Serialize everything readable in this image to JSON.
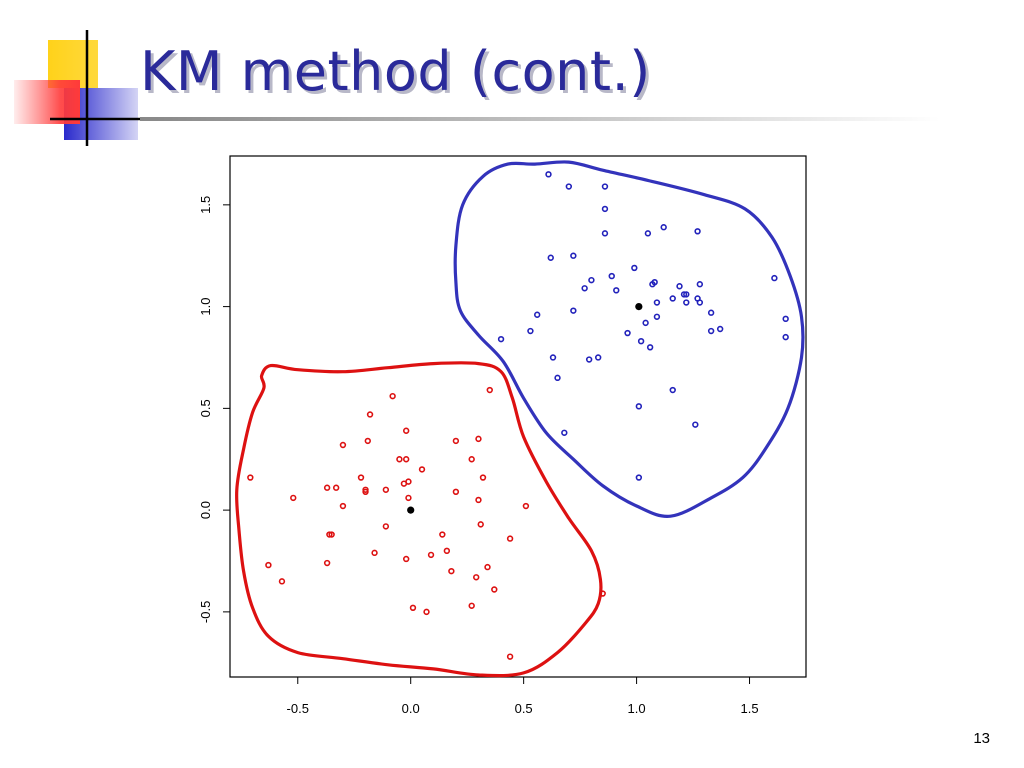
{
  "slide": {
    "title": "KM method (cont.)",
    "page_number": "13"
  },
  "colors": {
    "title": "#2a2a9a",
    "cluster_red": "#dd1111",
    "cluster_blue": "#2222bb",
    "red_outline": "#dd1111",
    "blue_outline": "#3333bb",
    "center": "#000000",
    "deco_yellow": "#ffd21a",
    "deco_red": "#ff4a4a",
    "deco_blue": "#2a2acc"
  },
  "chart_data": {
    "type": "scatter",
    "title": "",
    "xlabel": "",
    "ylabel": "",
    "xlim": [
      -0.8,
      1.75
    ],
    "ylim": [
      -0.82,
      1.74
    ],
    "grid": false,
    "x_ticks": [
      {
        "value": -0.5,
        "label": "-0.5"
      },
      {
        "value": 0.0,
        "label": "0.0"
      },
      {
        "value": 0.5,
        "label": "0.5"
      },
      {
        "value": 1.0,
        "label": "1.0"
      },
      {
        "value": 1.5,
        "label": "1.5"
      }
    ],
    "y_ticks": [
      {
        "value": -0.5,
        "label": "-0.5"
      },
      {
        "value": 0.0,
        "label": "0.0"
      },
      {
        "value": 0.5,
        "label": "0.5"
      },
      {
        "value": 1.0,
        "label": "1.0"
      },
      {
        "value": 1.5,
        "label": "1.5"
      }
    ],
    "series": [
      {
        "color": "#dd1111",
        "marker": "open-circle",
        "points": [
          [
            -0.71,
            0.16
          ],
          [
            -0.52,
            0.06
          ],
          [
            -0.63,
            -0.27
          ],
          [
            -0.57,
            -0.35
          ],
          [
            -0.37,
            0.11
          ],
          [
            -0.33,
            0.11
          ],
          [
            -0.36,
            -0.12
          ],
          [
            -0.35,
            -0.12
          ],
          [
            -0.37,
            -0.26
          ],
          [
            -0.3,
            0.02
          ],
          [
            -0.3,
            0.32
          ],
          [
            -0.22,
            0.16
          ],
          [
            -0.2,
            0.09
          ],
          [
            -0.2,
            0.1
          ],
          [
            -0.19,
            0.34
          ],
          [
            -0.18,
            0.47
          ],
          [
            -0.16,
            -0.21
          ],
          [
            -0.11,
            0.1
          ],
          [
            -0.11,
            -0.08
          ],
          [
            -0.08,
            0.56
          ],
          [
            -0.05,
            0.25
          ],
          [
            -0.03,
            0.13
          ],
          [
            -0.02,
            0.39
          ],
          [
            -0.02,
            0.25
          ],
          [
            -0.02,
            -0.24
          ],
          [
            -0.01,
            0.14
          ],
          [
            -0.01,
            0.06
          ],
          [
            0.01,
            -0.48
          ],
          [
            0.05,
            0.2
          ],
          [
            0.07,
            -0.5
          ],
          [
            0.09,
            -0.22
          ],
          [
            0.14,
            -0.12
          ],
          [
            0.16,
            -0.2
          ],
          [
            0.18,
            -0.3
          ],
          [
            0.2,
            0.34
          ],
          [
            0.2,
            0.09
          ],
          [
            0.27,
            0.25
          ],
          [
            0.27,
            -0.47
          ],
          [
            0.29,
            -0.33
          ],
          [
            0.3,
            0.35
          ],
          [
            0.3,
            0.05
          ],
          [
            0.31,
            -0.07
          ],
          [
            0.32,
            0.16
          ],
          [
            0.34,
            -0.28
          ],
          [
            0.35,
            0.59
          ],
          [
            0.37,
            -0.39
          ],
          [
            0.44,
            -0.14
          ],
          [
            0.44,
            -0.72
          ],
          [
            0.51,
            0.02
          ],
          [
            0.85,
            -0.41
          ]
        ]
      },
      {
        "color": "#2222bb",
        "marker": "open-circle",
        "points": [
          [
            0.61,
            1.65
          ],
          [
            0.7,
            1.59
          ],
          [
            0.86,
            1.59
          ],
          [
            0.86,
            1.48
          ],
          [
            0.86,
            1.36
          ],
          [
            0.62,
            1.24
          ],
          [
            0.72,
            1.25
          ],
          [
            0.89,
            1.15
          ],
          [
            0.91,
            1.08
          ],
          [
            0.4,
            0.84
          ],
          [
            0.53,
            0.88
          ],
          [
            0.56,
            0.96
          ],
          [
            0.63,
            0.75
          ],
          [
            0.65,
            0.65
          ],
          [
            0.68,
            0.38
          ],
          [
            0.72,
            0.98
          ],
          [
            0.77,
            1.09
          ],
          [
            0.8,
            1.13
          ],
          [
            0.79,
            0.74
          ],
          [
            0.83,
            0.75
          ],
          [
            0.96,
            0.87
          ],
          [
            0.99,
            1.19
          ],
          [
            1.01,
            0.51
          ],
          [
            1.01,
            0.16
          ],
          [
            1.02,
            0.83
          ],
          [
            1.04,
            0.92
          ],
          [
            1.05,
            1.36
          ],
          [
            1.06,
            0.8
          ],
          [
            1.07,
            1.11
          ],
          [
            1.08,
            1.12
          ],
          [
            1.09,
            1.02
          ],
          [
            1.09,
            0.95
          ],
          [
            1.12,
            1.39
          ],
          [
            1.16,
            1.04
          ],
          [
            1.16,
            0.59
          ],
          [
            1.19,
            1.1
          ],
          [
            1.21,
            1.06
          ],
          [
            1.22,
            1.06
          ],
          [
            1.22,
            1.02
          ],
          [
            1.26,
            0.42
          ],
          [
            1.27,
            1.37
          ],
          [
            1.27,
            1.04
          ],
          [
            1.28,
            1.11
          ],
          [
            1.28,
            1.02
          ],
          [
            1.33,
            0.97
          ],
          [
            1.33,
            0.88
          ],
          [
            1.37,
            0.89
          ],
          [
            1.61,
            1.14
          ],
          [
            1.66,
            0.94
          ],
          [
            1.66,
            0.85
          ]
        ]
      }
    ],
    "centers": [
      {
        "x": 0.0,
        "y": 0.0,
        "color": "#000000"
      },
      {
        "x": 1.01,
        "y": 1.0,
        "color": "#000000"
      }
    ],
    "cluster_outlines": [
      {
        "color": "#dd1111",
        "points": [
          [
            -0.66,
            0.66
          ],
          [
            -0.65,
            0.6
          ],
          [
            -0.7,
            0.48
          ],
          [
            -0.74,
            0.3
          ],
          [
            -0.77,
            0.1
          ],
          [
            -0.76,
            -0.1
          ],
          [
            -0.74,
            -0.3
          ],
          [
            -0.7,
            -0.48
          ],
          [
            -0.63,
            -0.62
          ],
          [
            -0.5,
            -0.7
          ],
          [
            -0.3,
            -0.73
          ],
          [
            -0.1,
            -0.76
          ],
          [
            0.1,
            -0.78
          ],
          [
            0.3,
            -0.81
          ],
          [
            0.5,
            -0.8
          ],
          [
            0.65,
            -0.7
          ],
          [
            0.77,
            -0.56
          ],
          [
            0.83,
            -0.46
          ],
          [
            0.84,
            -0.34
          ],
          [
            0.8,
            -0.2
          ],
          [
            0.7,
            -0.04
          ],
          [
            0.6,
            0.14
          ],
          [
            0.5,
            0.36
          ],
          [
            0.45,
            0.55
          ],
          [
            0.4,
            0.68
          ],
          [
            0.3,
            0.72
          ],
          [
            0.1,
            0.72
          ],
          [
            -0.1,
            0.7
          ],
          [
            -0.3,
            0.68
          ],
          [
            -0.5,
            0.69
          ],
          [
            -0.62,
            0.71
          ]
        ]
      },
      {
        "color": "#3333bb",
        "points": [
          [
            0.55,
            1.7
          ],
          [
            0.7,
            1.71
          ],
          [
            0.85,
            1.67
          ],
          [
            1.05,
            1.62
          ],
          [
            1.3,
            1.55
          ],
          [
            1.48,
            1.48
          ],
          [
            1.6,
            1.34
          ],
          [
            1.68,
            1.15
          ],
          [
            1.73,
            0.95
          ],
          [
            1.73,
            0.75
          ],
          [
            1.67,
            0.5
          ],
          [
            1.57,
            0.3
          ],
          [
            1.47,
            0.16
          ],
          [
            1.33,
            0.06
          ],
          [
            1.15,
            -0.03
          ],
          [
            1.0,
            0.02
          ],
          [
            0.85,
            0.12
          ],
          [
            0.72,
            0.25
          ],
          [
            0.6,
            0.38
          ],
          [
            0.5,
            0.55
          ],
          [
            0.41,
            0.73
          ],
          [
            0.3,
            0.86
          ],
          [
            0.22,
            0.98
          ],
          [
            0.2,
            1.12
          ],
          [
            0.2,
            1.3
          ],
          [
            0.23,
            1.5
          ],
          [
            0.32,
            1.64
          ],
          [
            0.43,
            1.7
          ]
        ]
      }
    ]
  }
}
